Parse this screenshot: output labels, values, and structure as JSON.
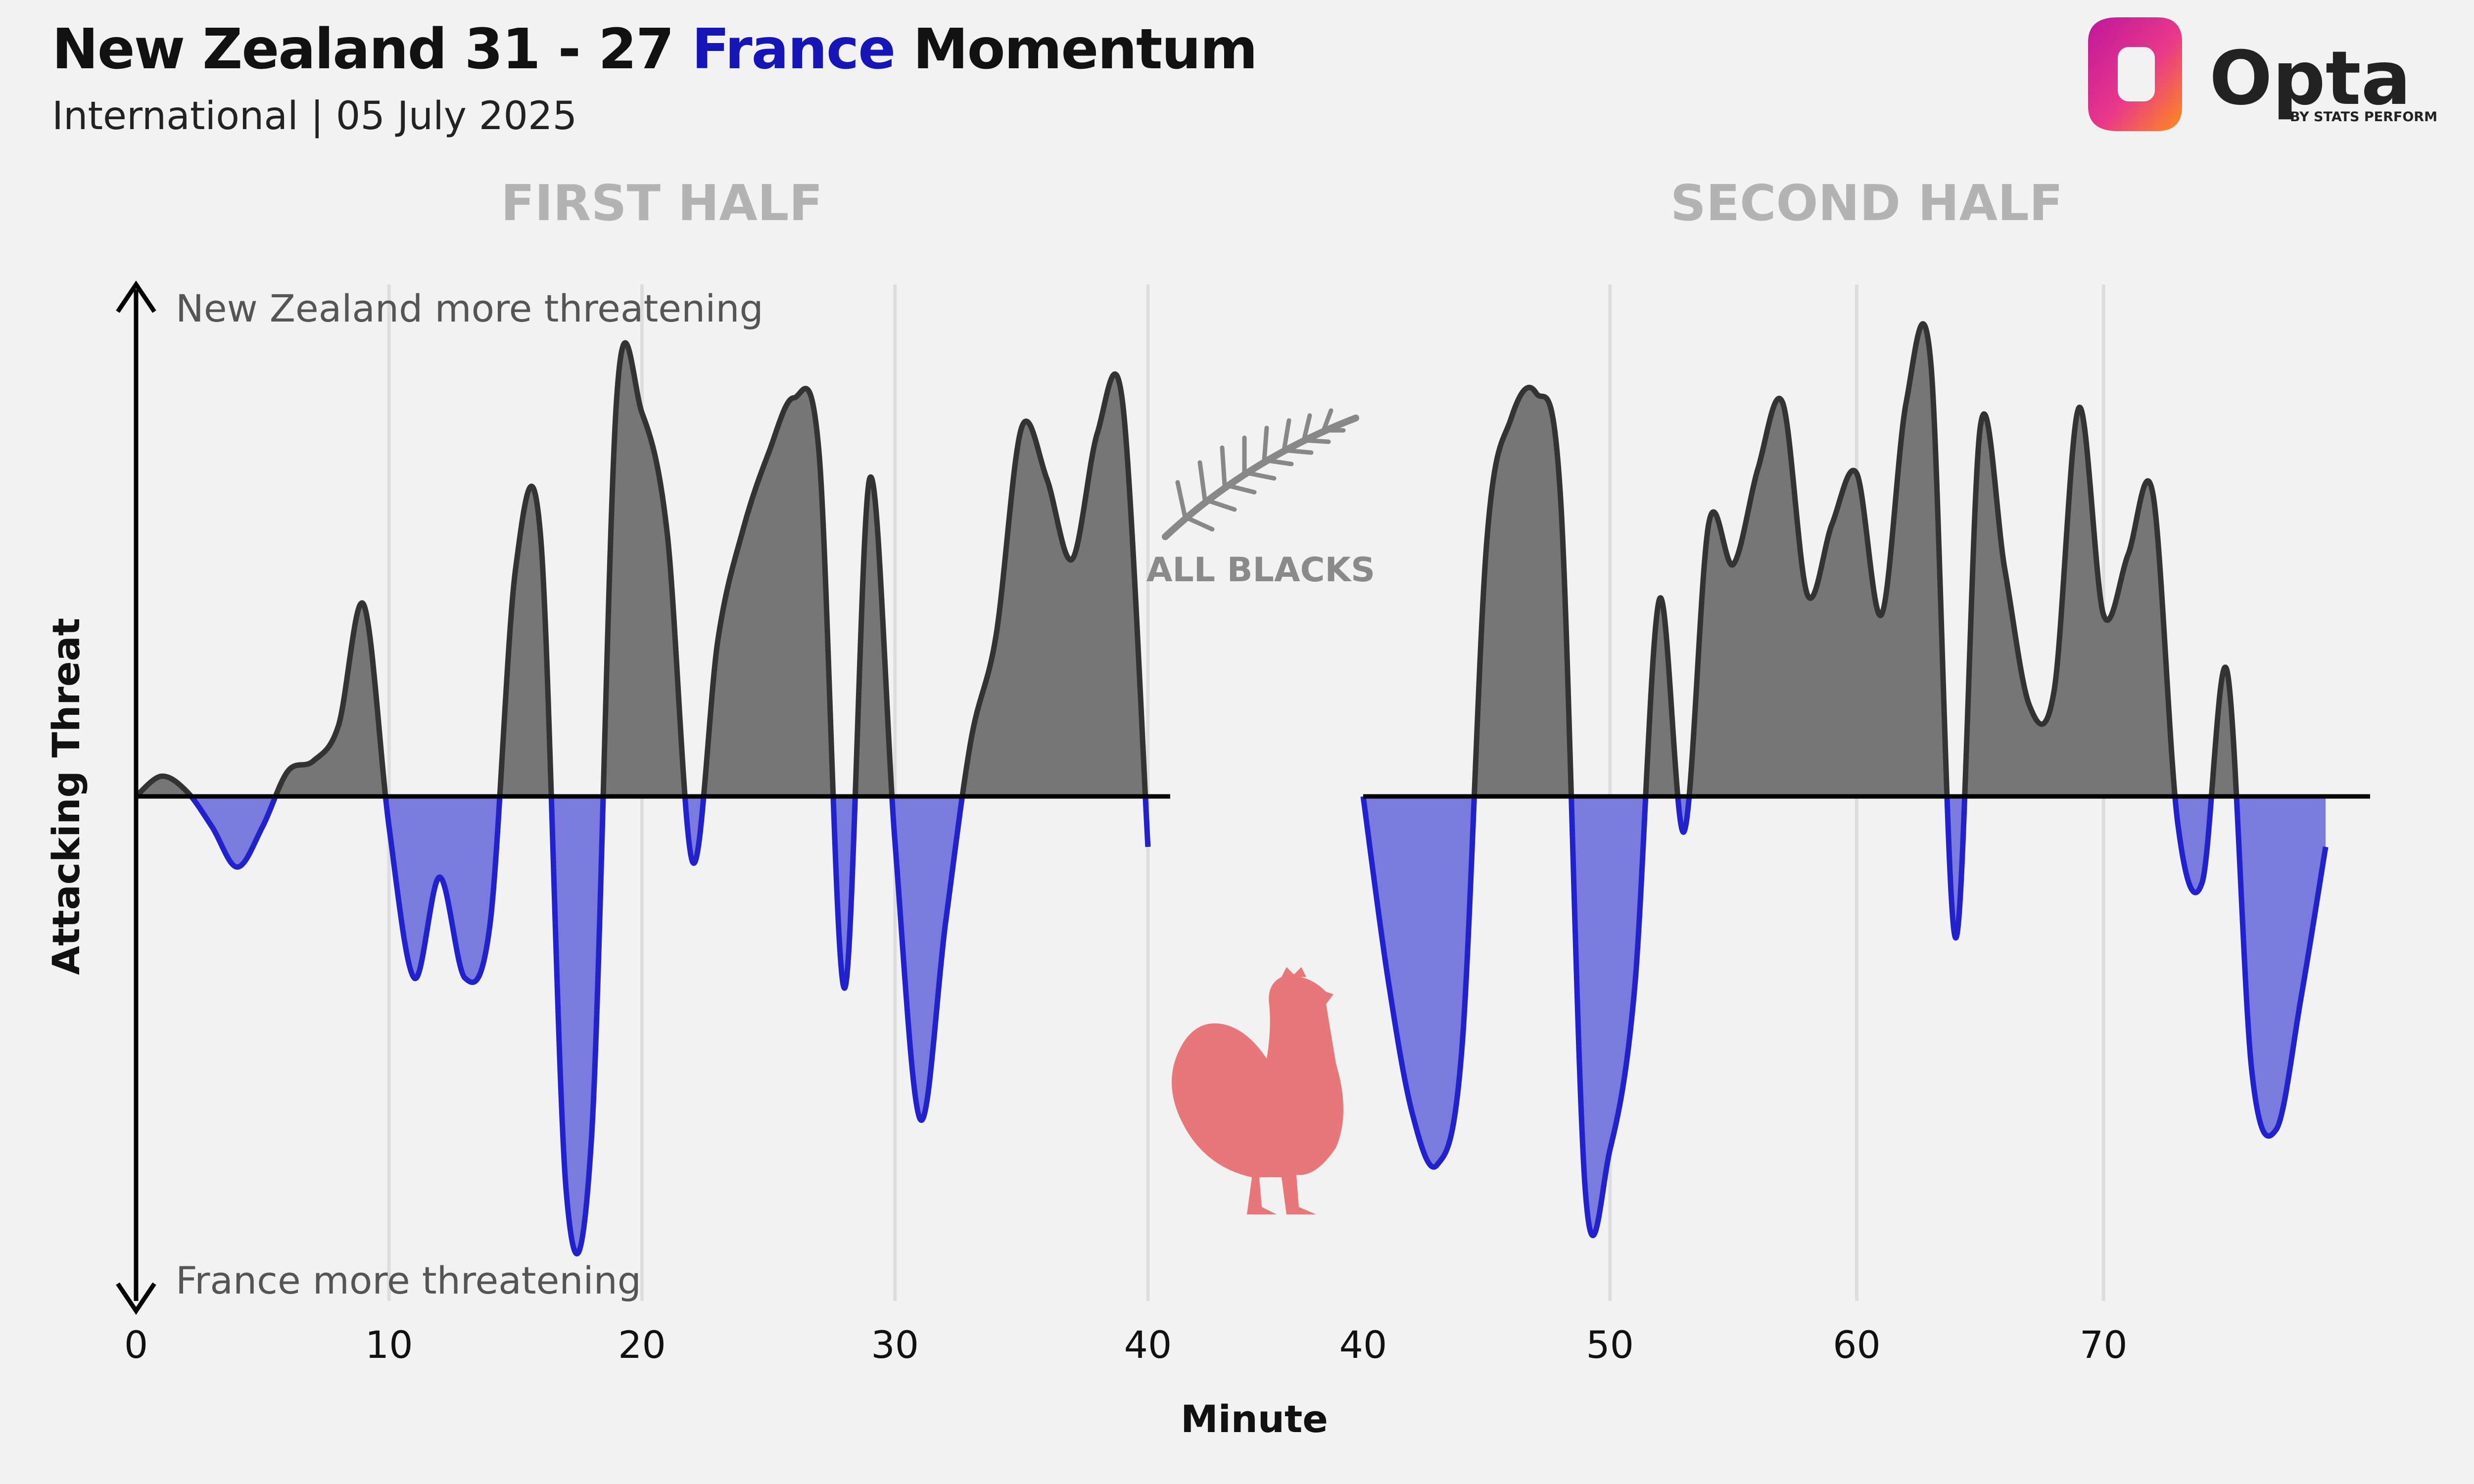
{
  "header": {
    "title_pre": "New Zealand 31 - 27",
    "title_team2": "France",
    "title_post": "Momentum",
    "subtitle": "International | 05 July 2025"
  },
  "logo": {
    "name": "Opta",
    "byline": "BY STATS PERFORM"
  },
  "badges": {
    "nz_logo_text": "ALL BLACKS",
    "nz_icon": "silver-fern-icon",
    "fr_icon": "rooster-icon"
  },
  "colors": {
    "nz_fill": "#767676",
    "nz_line": "#333333",
    "fr_fill": "#7b7bde",
    "fr_line": "#2222cc",
    "title_accent": "#1515b8",
    "grid": "#dddddd"
  },
  "chart_data": {
    "type": "area",
    "ylabel": "Attacking Threat",
    "xlabel": "Minute",
    "annotation_top": "New Zealand more threatening",
    "annotation_bottom": "France more threatening",
    "ylim": [
      -1,
      1
    ],
    "panels": [
      {
        "title": "FIRST HALF",
        "xlim": [
          0,
          40
        ],
        "ticks": [
          0,
          10,
          20,
          30,
          40
        ],
        "points": [
          [
            0,
            0
          ],
          [
            1,
            0.04
          ],
          [
            2,
            0.01
          ],
          [
            3,
            -0.06
          ],
          [
            4,
            -0.14
          ],
          [
            5,
            -0.06
          ],
          [
            6,
            0.05
          ],
          [
            7,
            0.07
          ],
          [
            8,
            0.14
          ],
          [
            9,
            0.38
          ],
          [
            10,
            -0.06
          ],
          [
            11,
            -0.36
          ],
          [
            12,
            -0.16
          ],
          [
            13,
            -0.36
          ],
          [
            14,
            -0.25
          ],
          [
            15,
            0.45
          ],
          [
            16,
            0.51
          ],
          [
            17,
            -0.78
          ],
          [
            18,
            -0.68
          ],
          [
            19,
            0.79
          ],
          [
            20,
            0.76
          ],
          [
            21,
            0.52
          ],
          [
            22,
            -0.13
          ],
          [
            23,
            0.31
          ],
          [
            24,
            0.53
          ],
          [
            25,
            0.68
          ],
          [
            26,
            0.79
          ],
          [
            27,
            0.68
          ],
          [
            28,
            -0.38
          ],
          [
            29,
            0.63
          ],
          [
            30,
            -0.09
          ],
          [
            31,
            -0.64
          ],
          [
            32,
            -0.25
          ],
          [
            33,
            0.11
          ],
          [
            34,
            0.32
          ],
          [
            35,
            0.73
          ],
          [
            36,
            0.63
          ],
          [
            37,
            0.47
          ],
          [
            38,
            0.72
          ],
          [
            39,
            0.78
          ],
          [
            40,
            -0.1
          ]
        ]
      },
      {
        "title": "SECOND HALF",
        "xlim": [
          40,
          80
        ],
        "ticks": [
          40,
          50,
          60,
          70
        ],
        "points": [
          [
            40,
            0
          ],
          [
            41,
            -0.36
          ],
          [
            42,
            -0.63
          ],
          [
            43,
            -0.73
          ],
          [
            44,
            -0.5
          ],
          [
            45,
            0.5
          ],
          [
            46,
            0.75
          ],
          [
            47,
            0.8
          ],
          [
            48,
            0.59
          ],
          [
            49,
            -0.78
          ],
          [
            50,
            -0.7
          ],
          [
            51,
            -0.38
          ],
          [
            52,
            0.39
          ],
          [
            53,
            -0.07
          ],
          [
            54,
            0.54
          ],
          [
            55,
            0.46
          ],
          [
            56,
            0.65
          ],
          [
            57,
            0.78
          ],
          [
            58,
            0.4
          ],
          [
            59,
            0.54
          ],
          [
            60,
            0.64
          ],
          [
            61,
            0.36
          ],
          [
            62,
            0.78
          ],
          [
            63,
            0.86
          ],
          [
            64,
            -0.28
          ],
          [
            65,
            0.73
          ],
          [
            66,
            0.45
          ],
          [
            67,
            0.18
          ],
          [
            68,
            0.21
          ],
          [
            69,
            0.77
          ],
          [
            70,
            0.36
          ],
          [
            71,
            0.48
          ],
          [
            72,
            0.6
          ],
          [
            73,
            -0.05
          ],
          [
            74,
            -0.17
          ],
          [
            75,
            0.25
          ],
          [
            76,
            -0.54
          ],
          [
            77,
            -0.66
          ],
          [
            78,
            -0.4
          ],
          [
            79,
            -0.1
          ]
        ]
      }
    ]
  }
}
